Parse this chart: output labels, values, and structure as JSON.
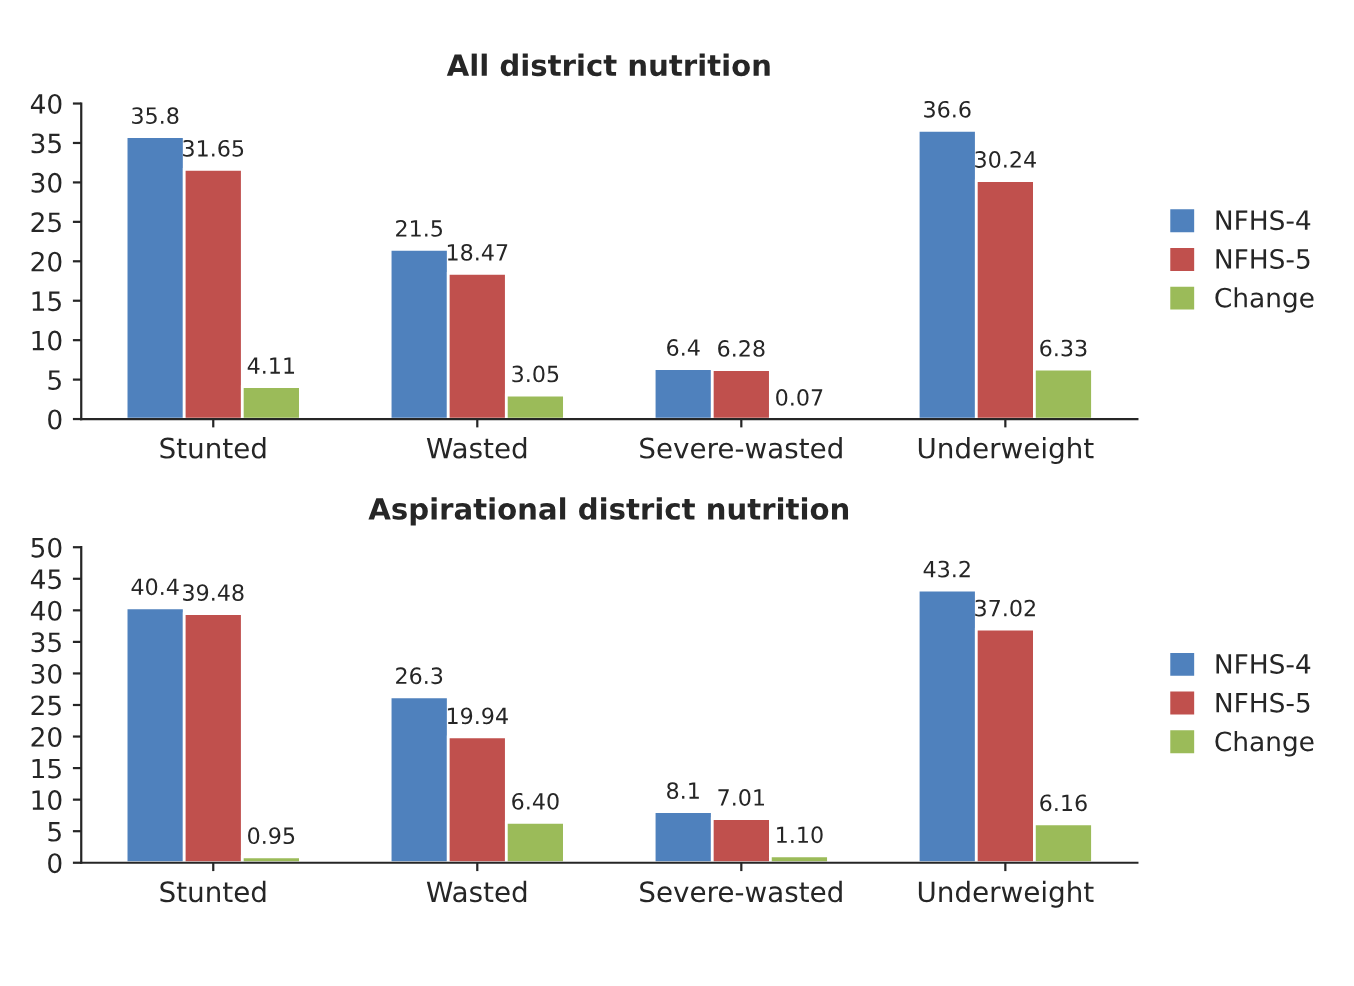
{
  "chart_data": [
    {
      "type": "bar",
      "title": "All district nutrition",
      "categories": [
        "Stunted",
        "Wasted",
        "Severe-wasted",
        "Underweight"
      ],
      "series": [
        {
          "name": "NFHS-4",
          "color": "#4f81bd",
          "values": [
            35.8,
            21.5,
            6.4,
            36.6
          ],
          "value_labels": [
            "35.8",
            "21.5",
            "6.4",
            "36.6"
          ]
        },
        {
          "name": "NFHS-5",
          "color": "#c0504d",
          "values": [
            31.65,
            18.47,
            6.28,
            30.24
          ],
          "value_labels": [
            "31.65",
            "18.47",
            "6.28",
            "30.24"
          ]
        },
        {
          "name": "Change",
          "color": "#9bbb59",
          "values": [
            4.11,
            3.05,
            0.07,
            6.33
          ],
          "value_labels": [
            "4.11",
            "3.05",
            "0.07",
            "6.33"
          ]
        }
      ],
      "ylim": [
        0,
        40
      ],
      "yticks": [
        0,
        5,
        10,
        15,
        20,
        25,
        30,
        35,
        40
      ],
      "grid": false,
      "legend": "right"
    },
    {
      "type": "bar",
      "title": "Aspirational district nutrition",
      "categories": [
        "Stunted",
        "Wasted",
        "Severe-wasted",
        "Underweight"
      ],
      "series": [
        {
          "name": "NFHS-4",
          "color": "#4f81bd",
          "values": [
            40.4,
            26.3,
            8.1,
            43.2
          ],
          "value_labels": [
            "40.4",
            "26.3",
            "8.1",
            "43.2"
          ]
        },
        {
          "name": "NFHS-5",
          "color": "#c0504d",
          "values": [
            39.48,
            19.94,
            7.01,
            37.02
          ],
          "value_labels": [
            "39.48",
            "19.94",
            "7.01",
            "37.02"
          ]
        },
        {
          "name": "Change",
          "color": "#9bbb59",
          "values": [
            0.95,
            6.4,
            1.1,
            6.16
          ],
          "value_labels": [
            "0.95",
            "6.40",
            "1.10",
            "6.16"
          ]
        }
      ],
      "ylim": [
        0,
        50
      ],
      "yticks": [
        0,
        5,
        10,
        15,
        20,
        25,
        30,
        35,
        40,
        45,
        50
      ],
      "grid": false,
      "legend": "right"
    }
  ]
}
